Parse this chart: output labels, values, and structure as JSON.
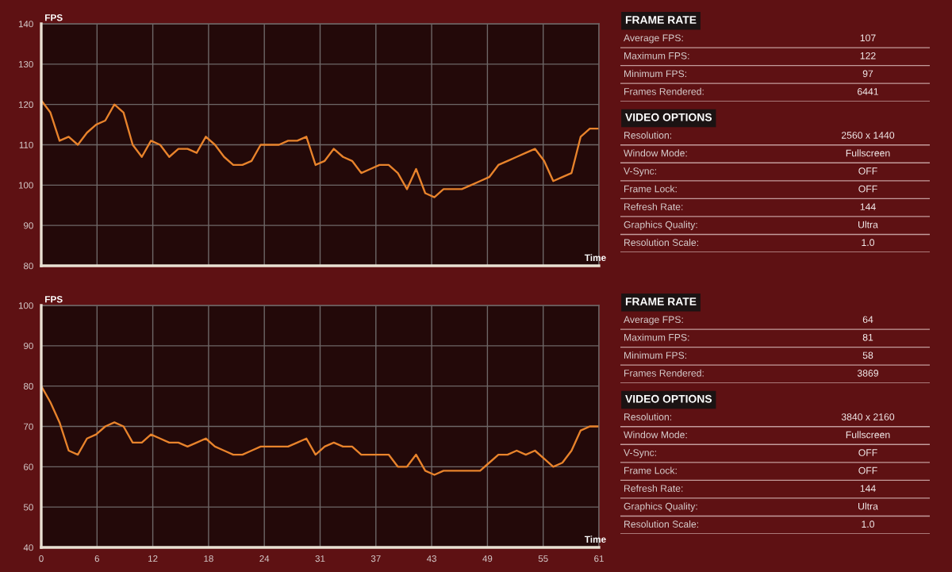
{
  "chart_data": [
    {
      "type": "line",
      "xlabel": "Time",
      "ylabel": "FPS",
      "x": [
        0,
        1,
        2,
        3,
        4,
        5,
        6,
        7,
        8,
        9,
        10,
        11,
        12,
        13,
        14,
        15,
        16,
        17,
        18,
        19,
        20,
        21,
        22,
        23,
        24,
        25,
        26,
        27,
        28,
        29,
        30,
        31,
        32,
        33,
        34,
        35,
        36,
        37,
        38,
        39,
        40,
        41,
        42,
        43,
        44,
        45,
        46,
        47,
        48,
        49,
        50,
        51,
        52,
        53,
        54,
        55,
        56,
        57,
        58,
        59,
        60,
        61
      ],
      "xlim": [
        0,
        61
      ],
      "xticks": [
        {
          "value": 0,
          "label": null
        },
        {
          "value": 6.1,
          "label": null
        },
        {
          "value": 12.2,
          "label": null
        },
        {
          "value": 18.3,
          "label": null
        },
        {
          "value": 24.4,
          "label": null
        },
        {
          "value": 30.5,
          "label": null
        },
        {
          "value": 36.6,
          "label": null
        },
        {
          "value": 42.7,
          "label": null
        },
        {
          "value": 48.8,
          "label": null
        },
        {
          "value": 54.9,
          "label": null
        },
        {
          "value": 61,
          "label": null
        }
      ],
      "ylim": [
        80,
        140
      ],
      "yticks": [
        80,
        90,
        100,
        110,
        120,
        130,
        140
      ],
      "tick_labels": "y",
      "grid": true,
      "series": [
        {
          "color": "#e8832c",
          "values": [
            121,
            118,
            111,
            112,
            110,
            113,
            115,
            116,
            120,
            118,
            110,
            107,
            111,
            110,
            107,
            109,
            109,
            108,
            112,
            110,
            107,
            105,
            105,
            106,
            110,
            110,
            110,
            111,
            111,
            112,
            105,
            106,
            109,
            107,
            106,
            103,
            104,
            105,
            105,
            103,
            99,
            104,
            98,
            97,
            99,
            99,
            99,
            100,
            101,
            102,
            105,
            106,
            107,
            108,
            109,
            106,
            101,
            102,
            103,
            112,
            114,
            114
          ]
        }
      ]
    },
    {
      "type": "other",
      "title": "FRAME RATE",
      "annotations": [
        "Average FPS:",
        "107",
        "Maximum FPS:",
        "122",
        "Minimum FPS:",
        "97",
        "Frames Rendered:",
        "6441"
      ]
    },
    {
      "type": "other",
      "title": "VIDEO OPTIONS",
      "annotations": [
        "Resolution:",
        "2560 x 1440",
        "Window Mode:",
        "Fullscreen",
        "V-Sync:",
        "OFF",
        "Frame Lock:",
        "OFF",
        "Refresh Rate:",
        "144",
        "Graphics Quality:",
        "Ultra",
        "Resolution Scale:",
        "1.0"
      ]
    },
    {
      "type": "line",
      "xlabel": "Time",
      "ylabel": "FPS",
      "x": [
        0,
        1,
        2,
        3,
        4,
        5,
        6,
        7,
        8,
        9,
        10,
        11,
        12,
        13,
        14,
        15,
        16,
        17,
        18,
        19,
        20,
        21,
        22,
        23,
        24,
        25,
        26,
        27,
        28,
        29,
        30,
        31,
        32,
        33,
        34,
        35,
        36,
        37,
        38,
        39,
        40,
        41,
        42,
        43,
        44,
        45,
        46,
        47,
        48,
        49,
        50,
        51,
        52,
        53,
        54,
        55,
        56,
        57,
        58,
        59,
        60,
        61
      ],
      "xlim": [
        0,
        61
      ],
      "xticks": [
        0,
        {
          "value": 6.1,
          "label": "6"
        },
        {
          "value": 12.2,
          "label": "12"
        },
        {
          "value": 18.3,
          "label": "18"
        },
        {
          "value": 24.4,
          "label": "24"
        },
        {
          "value": 30.5,
          "label": "31"
        },
        {
          "value": 36.6,
          "label": "37"
        },
        {
          "value": 42.7,
          "label": "43"
        },
        {
          "value": 48.8,
          "label": "49"
        },
        {
          "value": 54.9,
          "label": "55"
        },
        61
      ],
      "ylim": [
        40,
        100
      ],
      "yticks": [
        40,
        50,
        60,
        70,
        80,
        90,
        100
      ],
      "grid": true,
      "series": [
        {
          "color": "#e8832c",
          "values": [
            80,
            76,
            71,
            64,
            63,
            67,
            68,
            70,
            71,
            70,
            66,
            66,
            68,
            67,
            66,
            66,
            65,
            66,
            67,
            65,
            64,
            63,
            63,
            64,
            65,
            65,
            65,
            65,
            66,
            67,
            63,
            65,
            66,
            65,
            65,
            63,
            63,
            63,
            63,
            60,
            60,
            63,
            59,
            58,
            59,
            59,
            59,
            59,
            59,
            61,
            63,
            63,
            64,
            63,
            64,
            62,
            60,
            61,
            64,
            69,
            70,
            70
          ]
        }
      ]
    },
    {
      "type": "other",
      "title": "FRAME RATE",
      "annotations": [
        "Average FPS:",
        "64",
        "Maximum FPS:",
        "81",
        "Minimum FPS:",
        "58",
        "Frames Rendered:",
        "3869"
      ]
    },
    {
      "type": "other",
      "title": "VIDEO OPTIONS",
      "annotations": [
        "Resolution:",
        "3840 x 2160",
        "Window Mode:",
        "Fullscreen",
        "V-Sync:",
        "OFF",
        "Frame Lock:",
        "OFF",
        "Refresh Rate:",
        "144",
        "Graphics Quality:",
        "Ultra",
        "Resolution Scale:",
        "1.0"
      ]
    }
  ]
}
